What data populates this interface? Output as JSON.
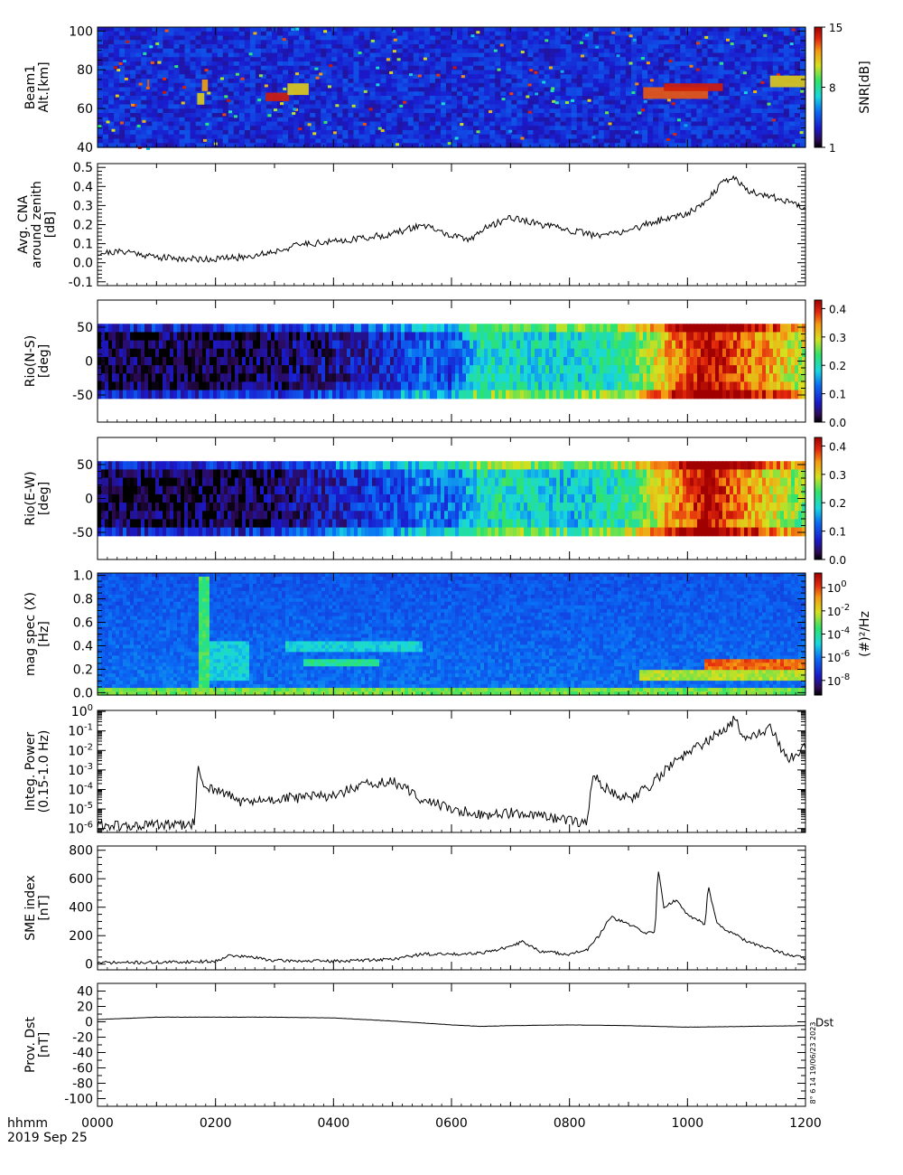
{
  "chart_data": [
    {
      "type": "heatmap",
      "ylabel": [
        "Beam1",
        "Alt.[km]"
      ],
      "yticks": [
        40,
        60,
        80,
        100
      ],
      "ylim": [
        40,
        102
      ],
      "colorbar": {
        "label": "SNR[dB]",
        "ticks": [
          "1",
          "8",
          "15"
        ],
        "range": [
          1,
          15
        ]
      },
      "blobs": [
        {
          "t": 0.86,
          "alt": 73,
          "w": 0.016,
          "h": 2,
          "v": 13
        },
        {
          "t": 1.75,
          "alt": 65,
          "w": 0.06,
          "h": 3,
          "v": 11
        },
        {
          "t": 1.82,
          "alt": 72,
          "w": 0.05,
          "h": 3,
          "v": 12
        },
        {
          "t": 3.05,
          "alt": 66,
          "w": 0.2,
          "h": 2.2,
          "v": 14
        },
        {
          "t": 3.4,
          "alt": 70,
          "w": 0.18,
          "h": 3,
          "v": 11
        },
        {
          "t": 9.8,
          "alt": 68,
          "w": 0.55,
          "h": 3,
          "v": 13
        },
        {
          "t": 10.1,
          "alt": 71,
          "w": 0.5,
          "h": 2,
          "v": 14
        },
        {
          "t": 11.7,
          "alt": 74,
          "w": 0.3,
          "h": 3,
          "v": 11
        }
      ]
    },
    {
      "type": "line",
      "ylabel": [
        "Avg. CNA",
        "around zenith",
        "[dB]"
      ],
      "yticks": [
        "-0.1",
        "0.0",
        "0.1",
        "0.2",
        "0.3",
        "0.4",
        "0.5"
      ],
      "ylim": [
        -0.12,
        0.52
      ],
      "x": [
        0,
        0.5,
        1,
        1.5,
        2,
        2.5,
        3,
        3.5,
        4,
        4.5,
        5,
        5.3,
        5.5,
        6,
        6.3,
        6.5,
        7,
        7.5,
        8,
        8.5,
        9,
        9.5,
        10,
        10.3,
        10.6,
        10.8,
        11,
        11.5,
        12
      ],
      "y": [
        0.05,
        0.06,
        0.03,
        0.02,
        0.02,
        0.03,
        0.06,
        0.1,
        0.11,
        0.13,
        0.15,
        0.18,
        0.2,
        0.14,
        0.12,
        0.17,
        0.24,
        0.2,
        0.17,
        0.14,
        0.17,
        0.22,
        0.26,
        0.32,
        0.42,
        0.45,
        0.38,
        0.34,
        0.29
      ]
    },
    {
      "type": "heatmap",
      "ylabel": [
        "Rio(N-S)",
        "[deg]"
      ],
      "yticks": [
        "-50",
        "0",
        "50"
      ],
      "ylim": [
        -90,
        90
      ],
      "colorbar": {
        "ticks": [
          "0.0",
          "0.1",
          "0.2",
          "0.3",
          "0.4"
        ],
        "range": [
          0,
          0.43
        ]
      },
      "profile_x": [
        0,
        1,
        2,
        3,
        4,
        5,
        5.5,
        6,
        6.5,
        7,
        8,
        9,
        10,
        10.3,
        11,
        12
      ],
      "profile_v": [
        0.02,
        0.02,
        0.02,
        0.03,
        0.05,
        0.08,
        0.12,
        0.1,
        0.2,
        0.2,
        0.18,
        0.22,
        0.38,
        0.42,
        0.36,
        0.28
      ]
    },
    {
      "type": "heatmap",
      "ylabel": [
        "Rio(E-W)",
        "[deg]"
      ],
      "yticks": [
        "-50",
        "0",
        "50"
      ],
      "ylim": [
        -90,
        90
      ],
      "colorbar": {
        "ticks": [
          "0.0",
          "0.1",
          "0.2",
          "0.3",
          "0.4"
        ],
        "range": [
          0,
          0.43
        ]
      },
      "profile_x": [
        0,
        1,
        2,
        3,
        4,
        5,
        5.5,
        6,
        6.5,
        7,
        8,
        9,
        10,
        10.3,
        11,
        12
      ],
      "profile_v": [
        0.02,
        0.02,
        0.02,
        0.03,
        0.07,
        0.1,
        0.13,
        0.12,
        0.2,
        0.2,
        0.17,
        0.22,
        0.37,
        0.42,
        0.34,
        0.25
      ]
    },
    {
      "type": "heatmap",
      "ylabel": [
        "mag spec (X)",
        "[Hz]"
      ],
      "yticks": [
        "0.0",
        "0.2",
        "0.4",
        "0.6",
        "0.8",
        "1.0"
      ],
      "ylim": [
        -0.02,
        1.02
      ],
      "colorbar": {
        "label": "(#)²/Hz",
        "ticks_exp": [
          "0",
          "-2",
          "-4",
          "-6",
          "-8"
        ],
        "base": "10"
      },
      "features": [
        {
          "t0": 1.7,
          "t1": 1.9,
          "f0": 0.0,
          "f1": 1.0,
          "level": 0.55
        },
        {
          "t0": 1.9,
          "t1": 2.6,
          "f0": 0.1,
          "f1": 0.45,
          "level": 0.42
        },
        {
          "t0": 3.5,
          "t1": 4.8,
          "f0": 0.22,
          "f1": 0.3,
          "level": 0.5
        },
        {
          "t0": 3.2,
          "t1": 5.5,
          "f0": 0.35,
          "f1": 0.45,
          "level": 0.42
        },
        {
          "t0": 10.3,
          "t1": 12.0,
          "f0": 0.15,
          "f1": 0.28,
          "level": 0.85
        },
        {
          "t0": 9.2,
          "t1": 12.0,
          "f0": 0.1,
          "f1": 0.2,
          "level": 0.65
        },
        {
          "t0": 0,
          "t1": 12.0,
          "f0": -0.02,
          "f1": 0.03,
          "level": 0.6
        }
      ]
    },
    {
      "type": "line",
      "ylabel": [
        "Integ. Power",
        "(0.15-1.0 Hz)"
      ],
      "log": true,
      "yticks_exp": [
        "0",
        "-1",
        "-2",
        "-3",
        "-4",
        "-5",
        "-6"
      ],
      "ylim_exp": [
        -6.2,
        0.05
      ],
      "x": [
        0,
        0.5,
        1,
        1.5,
        1.65,
        1.7,
        1.8,
        2,
        2.5,
        3,
        3.5,
        4,
        4.5,
        5,
        5.5,
        6,
        6.5,
        7,
        7.5,
        8,
        8.3,
        8.4,
        8.6,
        9,
        9.4,
        9.8,
        10.2,
        10.6,
        10.8,
        11,
        11.4,
        11.7,
        12
      ],
      "y": [
        -5.8,
        -5.9,
        -5.8,
        -5.85,
        -5.7,
        -2.8,
        -3.8,
        -4.0,
        -4.7,
        -4.5,
        -4.4,
        -4.3,
        -3.8,
        -3.6,
        -4.5,
        -5.0,
        -5.3,
        -5.2,
        -5.4,
        -5.6,
        -5.7,
        -3.2,
        -3.9,
        -4.5,
        -3.7,
        -2.5,
        -1.8,
        -1.0,
        -0.4,
        -1.5,
        -0.8,
        -2.6,
        -1.7
      ]
    },
    {
      "type": "line",
      "ylabel": [
        "SME index",
        "[nT]"
      ],
      "yticks": [
        "0",
        "200",
        "400",
        "600",
        "800"
      ],
      "ylim": [
        -40,
        830
      ],
      "x": [
        0,
        1,
        2,
        2.2,
        2.6,
        3,
        4,
        5,
        5.5,
        6,
        6.5,
        7,
        7.2,
        7.5,
        8,
        8.3,
        8.5,
        8.7,
        9,
        9.3,
        9.45,
        9.5,
        9.6,
        9.8,
        10,
        10.3,
        10.35,
        10.5,
        11,
        11.5,
        12
      ],
      "y": [
        10,
        12,
        20,
        60,
        50,
        25,
        20,
        35,
        70,
        70,
        80,
        120,
        160,
        90,
        70,
        100,
        200,
        330,
        280,
        220,
        220,
        680,
        400,
        450,
        350,
        280,
        560,
        280,
        160,
        90,
        40
      ]
    },
    {
      "type": "line",
      "ylabel": [
        "Prov. Dst",
        "[nT]"
      ],
      "yticks": [
        "-100",
        "-80",
        "-60",
        "-40",
        "-20",
        "0",
        "20",
        "40"
      ],
      "ylim": [
        -110,
        50
      ],
      "x": [
        0,
        1,
        2,
        3,
        4,
        5,
        6,
        6.5,
        7,
        8,
        9,
        10,
        11,
        12
      ],
      "y": [
        3,
        6,
        6,
        6,
        5,
        1,
        -4,
        -6,
        -5,
        -4,
        -5,
        -7,
        -6,
        -5
      ],
      "series_label": "Dst",
      "side_note": "8° 6 14 19/06/23 2023"
    }
  ],
  "xaxis": {
    "ticks": [
      "0000",
      "0200",
      "0400",
      "0600",
      "0800",
      "1000",
      "1200"
    ],
    "unit_label": "hhmm",
    "date_label": "2019 Sep 25",
    "range": [
      0,
      12
    ]
  }
}
